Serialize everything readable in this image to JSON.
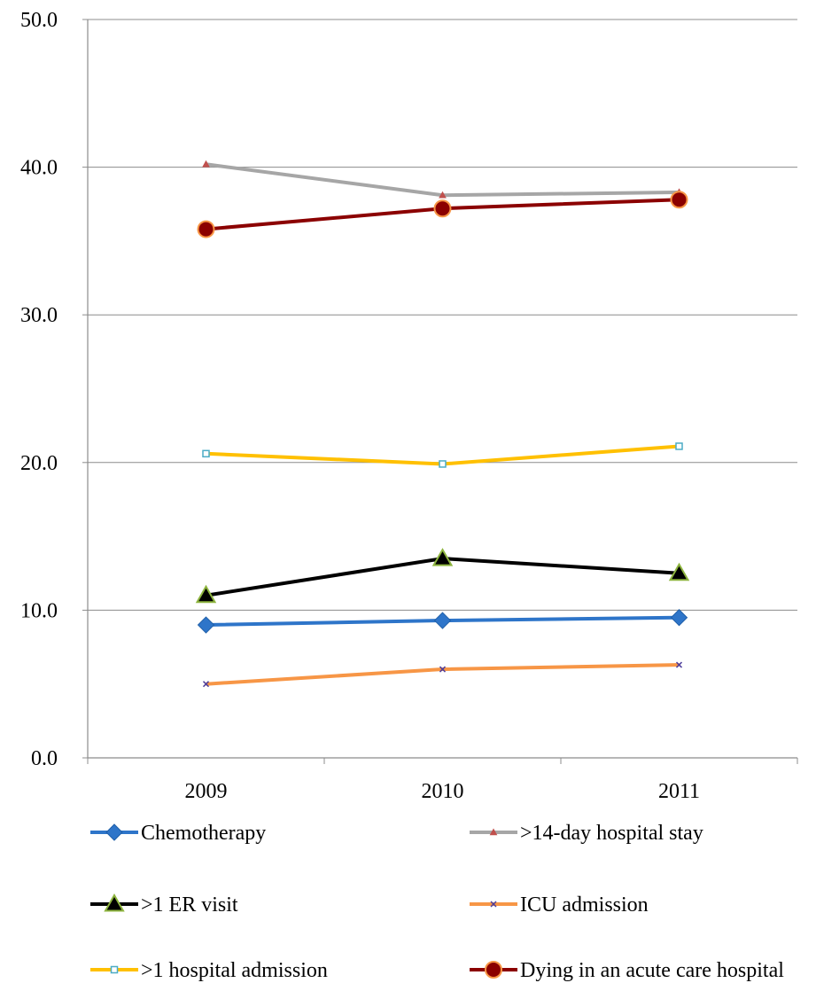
{
  "chart_data": {
    "type": "line",
    "title": "",
    "xlabel": "",
    "ylabel": "",
    "categories": [
      "2009",
      "2010",
      "2011"
    ],
    "ylim": [
      0,
      50
    ],
    "yticks": [
      "0.0",
      "10.0",
      "20.0",
      "30.0",
      "40.0",
      "50.0"
    ],
    "grid": true,
    "legend_position": "bottom",
    "series": [
      {
        "name": "Chemotherapy",
        "values": [
          9.0,
          9.3,
          9.5
        ],
        "color": "#2E75C9",
        "marker": "diamond"
      },
      {
        "name": ">14-day hospital stay",
        "values": [
          40.2,
          38.1,
          38.3
        ],
        "color": "#A6A6A6",
        "marker": "triangle-small"
      },
      {
        "name": ">1 ER visit",
        "values": [
          11.0,
          13.5,
          12.5
        ],
        "color": "#000000",
        "marker": "triangle"
      },
      {
        "name": "ICU admission",
        "values": [
          5.0,
          6.0,
          6.3
        ],
        "color": "#F79646",
        "marker": "x"
      },
      {
        "name": ">1 hospital admission",
        "values": [
          20.6,
          19.9,
          21.1
        ],
        "color": "#FFC000",
        "marker": "square"
      },
      {
        "name": "Dying in an acute care hospital",
        "values": [
          35.8,
          37.2,
          37.8
        ],
        "color": "#8B0000",
        "marker": "circle"
      }
    ]
  }
}
